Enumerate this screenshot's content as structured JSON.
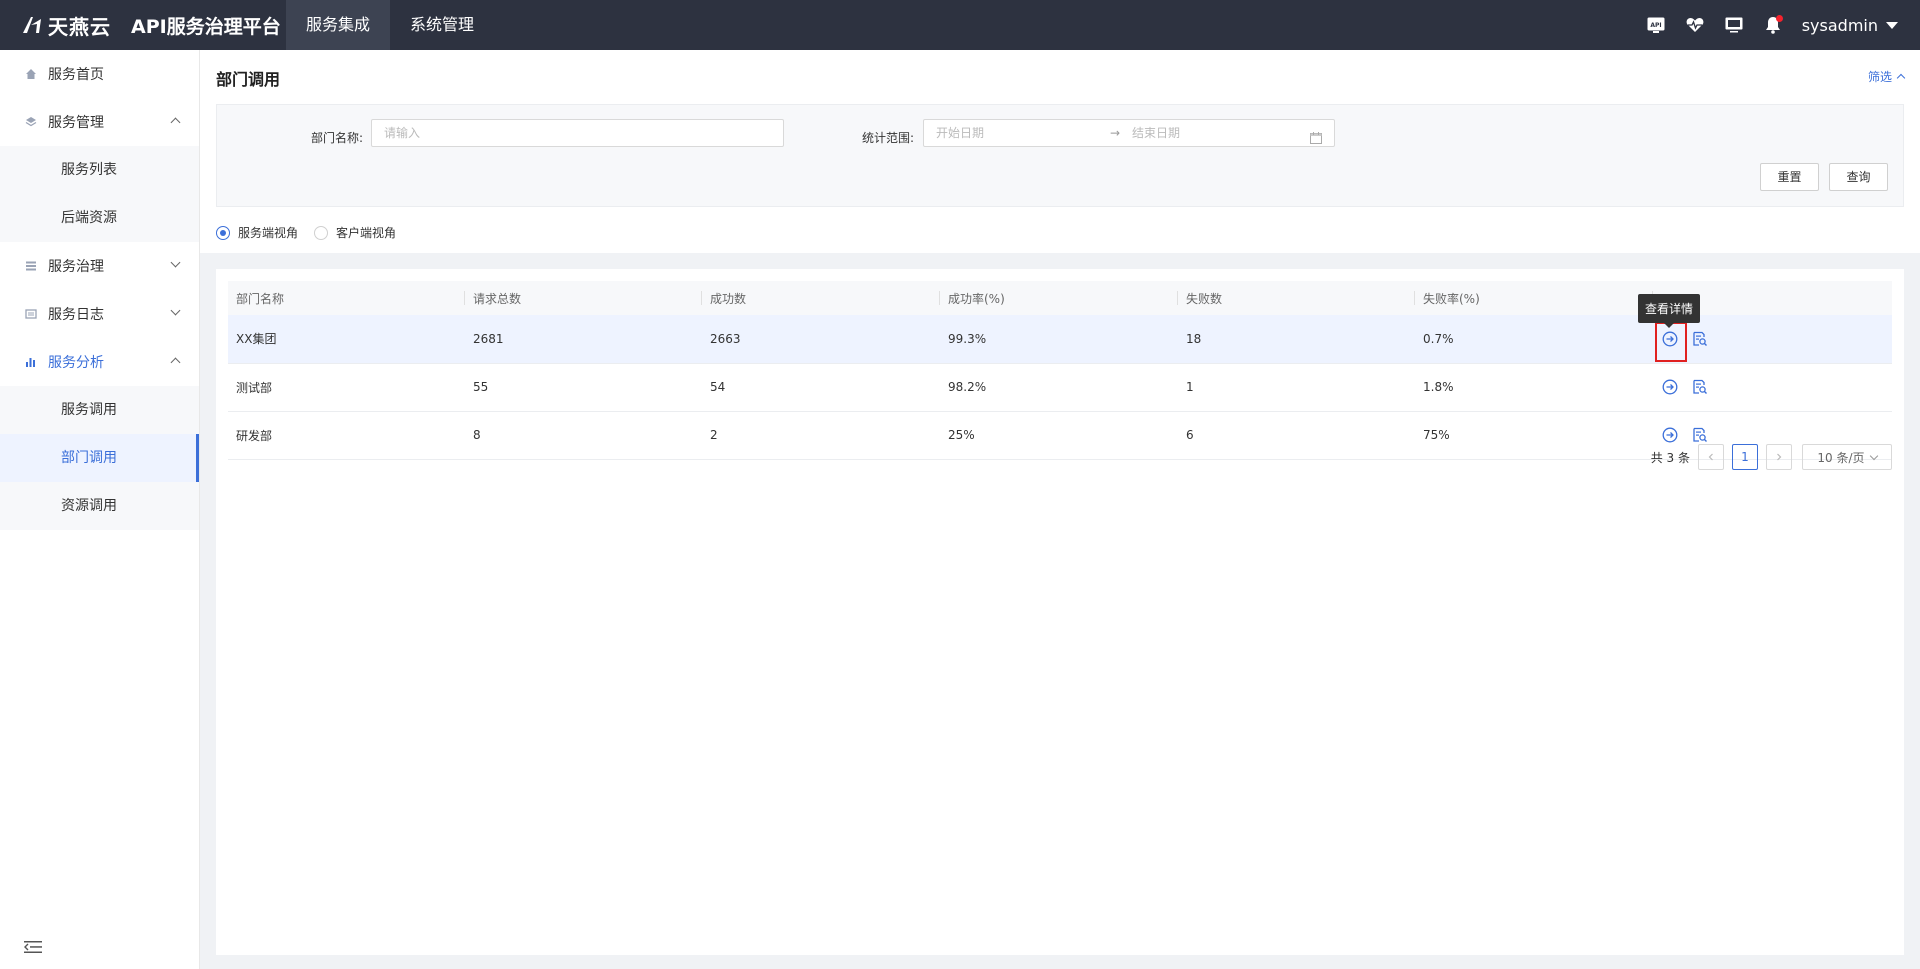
{
  "header": {
    "brand": "天燕云",
    "platform": "API服务治理平台",
    "nav": [
      {
        "label": "服务集成",
        "active": true
      },
      {
        "label": "系统管理",
        "active": false
      }
    ],
    "icons": [
      "api-icon",
      "heartbeat-icon",
      "monitor-icon",
      "bell-icon"
    ],
    "api_icon_text": "API",
    "user": "sysadmin"
  },
  "sidebar": {
    "items": [
      {
        "label": "服务首页",
        "icon": "home-icon"
      },
      {
        "label": "服务管理",
        "icon": "layers-icon",
        "expanded": true,
        "children": [
          {
            "label": "服务列表"
          },
          {
            "label": "后端资源"
          }
        ]
      },
      {
        "label": "服务治理",
        "icon": "list-icon",
        "expanded": false
      },
      {
        "label": "服务日志",
        "icon": "log-icon",
        "expanded": false
      },
      {
        "label": "服务分析",
        "icon": "bar-chart-icon",
        "expanded": true,
        "active": true,
        "children": [
          {
            "label": "服务调用"
          },
          {
            "label": "部门调用",
            "active": true
          },
          {
            "label": "资源调用"
          }
        ]
      }
    ]
  },
  "page": {
    "title": "部门调用",
    "filter_toggle": "筛选",
    "filters": {
      "dept_label": "部门名称:",
      "dept_placeholder": "请输入",
      "range_label": "统计范围:",
      "start_placeholder": "开始日期",
      "range_arrow": "→",
      "end_placeholder": "结束日期",
      "reset": "重置",
      "query": "查询"
    },
    "perspectives": [
      {
        "label": "服务端视角",
        "checked": true
      },
      {
        "label": "客户端视角",
        "checked": false
      }
    ]
  },
  "table": {
    "columns": [
      "部门名称",
      "请求总数",
      "成功数",
      "成功率(%)",
      "失败数",
      "失败率(%)",
      ""
    ],
    "rows": [
      [
        "XX集团",
        "2681",
        "2663",
        "99.3%",
        "18",
        "0.7%"
      ],
      [
        "测试部",
        "55",
        "54",
        "98.2%",
        "1",
        "1.8%"
      ],
      [
        "研发部",
        "8",
        "2",
        "25%",
        "6",
        "75%"
      ]
    ],
    "tooltip": "查看详情"
  },
  "pagination": {
    "total": "共 3 条",
    "current": "1",
    "page_size": "10 条/页"
  },
  "colors": {
    "topbar": "#2d3240",
    "accent": "#3b6fd9",
    "highlight": "#e02020"
  }
}
